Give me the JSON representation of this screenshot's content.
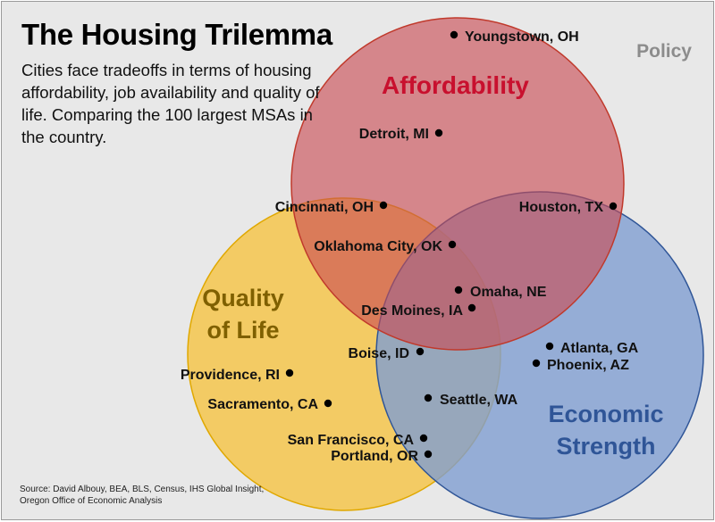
{
  "title": "The Housing Trilemma",
  "subtitle": "Cities face tradeoffs in terms of housing affordability, job availability and quality of life. Comparing the 100 largest MSAs in the country.",
  "corner_label": "Policy",
  "source": "Source: David Albouy, BEA, BLS, Census, IHS Global Insight, Oregon Office of Economic Analysis",
  "circles": {
    "affordability": {
      "label": "Affordability",
      "fill": "#d9797d",
      "stroke": "#c0392b",
      "text_color": "#c8102e"
    },
    "quality_of_life": {
      "label_line1": "Quality",
      "label_line2": "of Life",
      "fill": "#f5c342",
      "stroke": "#e0a800",
      "text_color": "#7f6000"
    },
    "economic_strength": {
      "label_line1": "Economic",
      "label_line2": "Strength",
      "fill": "#7f9dd1",
      "stroke": "#2f5597",
      "text_color": "#2f5597"
    }
  },
  "cities": [
    {
      "name": "Youngstown, OH"
    },
    {
      "name": "Detroit, MI"
    },
    {
      "name": "Cincinnati, OH"
    },
    {
      "name": "Houston, TX"
    },
    {
      "name": "Oklahoma City, OK"
    },
    {
      "name": "Omaha, NE"
    },
    {
      "name": "Des Moines, IA"
    },
    {
      "name": "Boise, ID"
    },
    {
      "name": "Atlanta, GA"
    },
    {
      "name": "Phoenix, AZ"
    },
    {
      "name": "Providence, RI"
    },
    {
      "name": "Sacramento, CA"
    },
    {
      "name": "Seattle, WA"
    },
    {
      "name": "San Francisco, CA"
    },
    {
      "name": "Portland, OR"
    }
  ]
}
